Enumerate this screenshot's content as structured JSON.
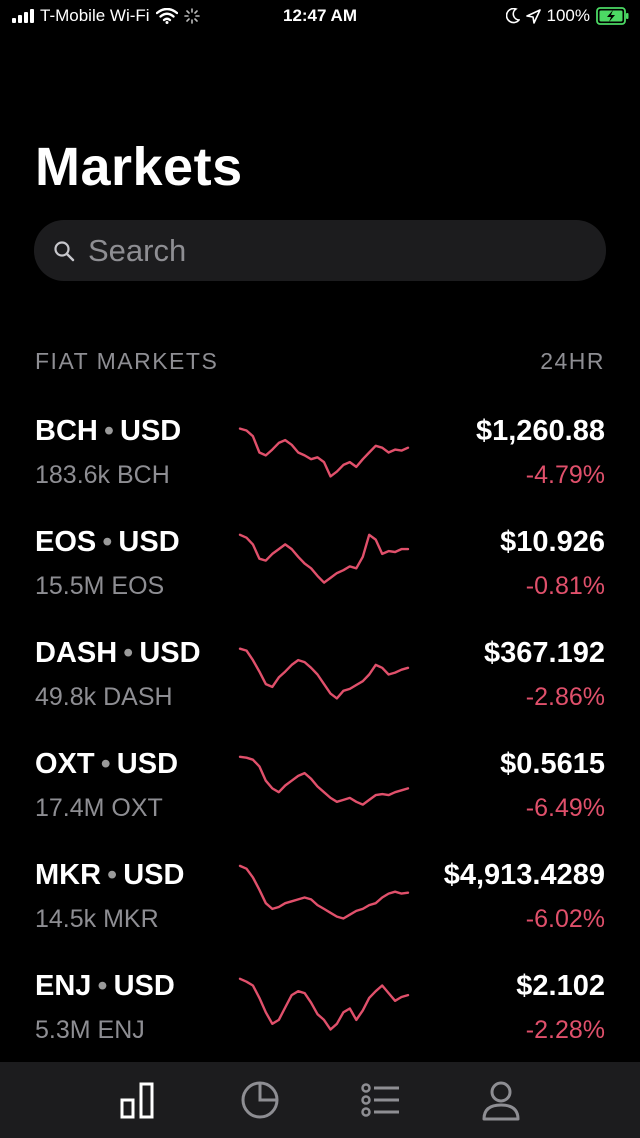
{
  "status_bar": {
    "carrier": "T-Mobile Wi-Fi",
    "time": "12:47 AM",
    "battery": "100%"
  },
  "title": "Markets",
  "search": {
    "placeholder": "Search"
  },
  "section": {
    "label": "FIAT MARKETS",
    "period": "24HR"
  },
  "colors": {
    "negative": "#e0506b",
    "background": "#000000",
    "muted": "#8e8e93"
  },
  "markets": [
    {
      "base": "BCH",
      "quote": "USD",
      "volume": "183.6k BCH",
      "price": "$1,260.88",
      "change": "-4.79%",
      "spark": [
        10,
        12,
        18,
        35,
        38,
        32,
        25,
        22,
        27,
        35,
        38,
        42,
        40,
        45,
        60,
        55,
        48,
        45,
        50,
        42,
        35,
        28,
        30,
        35,
        32,
        33,
        30
      ]
    },
    {
      "base": "EOS",
      "quote": "USD",
      "volume": "15.5M EOS",
      "price": "$10.926",
      "change": "-0.81%",
      "spark": [
        5,
        8,
        15,
        30,
        32,
        25,
        20,
        15,
        20,
        28,
        35,
        40,
        48,
        55,
        50,
        45,
        42,
        38,
        40,
        28,
        5,
        10,
        25,
        22,
        23,
        20,
        20
      ]
    },
    {
      "base": "DASH",
      "quote": "USD",
      "volume": "49.8k DASH",
      "price": "$367.192",
      "change": "-2.86%",
      "spark": [
        8,
        10,
        20,
        32,
        45,
        48,
        38,
        32,
        25,
        20,
        22,
        28,
        35,
        45,
        55,
        60,
        52,
        50,
        46,
        42,
        35,
        25,
        28,
        35,
        33,
        30,
        28
      ]
    },
    {
      "base": "OXT",
      "quote": "USD",
      "volume": "17.4M OXT",
      "price": "$0.5615",
      "change": "-6.49%",
      "spark": [
        5,
        6,
        8,
        15,
        30,
        38,
        42,
        35,
        30,
        25,
        22,
        28,
        36,
        42,
        48,
        52,
        50,
        48,
        52,
        55,
        50,
        45,
        44,
        45,
        42,
        40,
        38
      ]
    },
    {
      "base": "MKR",
      "quote": "USD",
      "volume": "14.5k MKR",
      "price": "$4,913.4289",
      "change": "-6.02%",
      "spark": [
        3,
        6,
        15,
        28,
        42,
        48,
        46,
        42,
        40,
        38,
        36,
        38,
        44,
        48,
        52,
        56,
        58,
        54,
        50,
        48,
        44,
        42,
        36,
        32,
        30,
        32,
        31
      ]
    },
    {
      "base": "ENJ",
      "quote": "USD",
      "volume": "5.3M ENJ",
      "price": "$2.102",
      "change": "-2.28%",
      "spark": [
        5,
        8,
        12,
        25,
        40,
        52,
        48,
        35,
        22,
        18,
        20,
        30,
        42,
        48,
        58,
        52,
        40,
        36,
        48,
        38,
        25,
        18,
        12,
        20,
        28,
        24,
        22
      ]
    }
  ],
  "tabs": [
    {
      "name": "markets",
      "icon": "bar-chart-icon"
    },
    {
      "name": "portfolio",
      "icon": "pie-chart-icon"
    },
    {
      "name": "orders",
      "icon": "list-icon"
    },
    {
      "name": "account",
      "icon": "person-icon"
    }
  ]
}
